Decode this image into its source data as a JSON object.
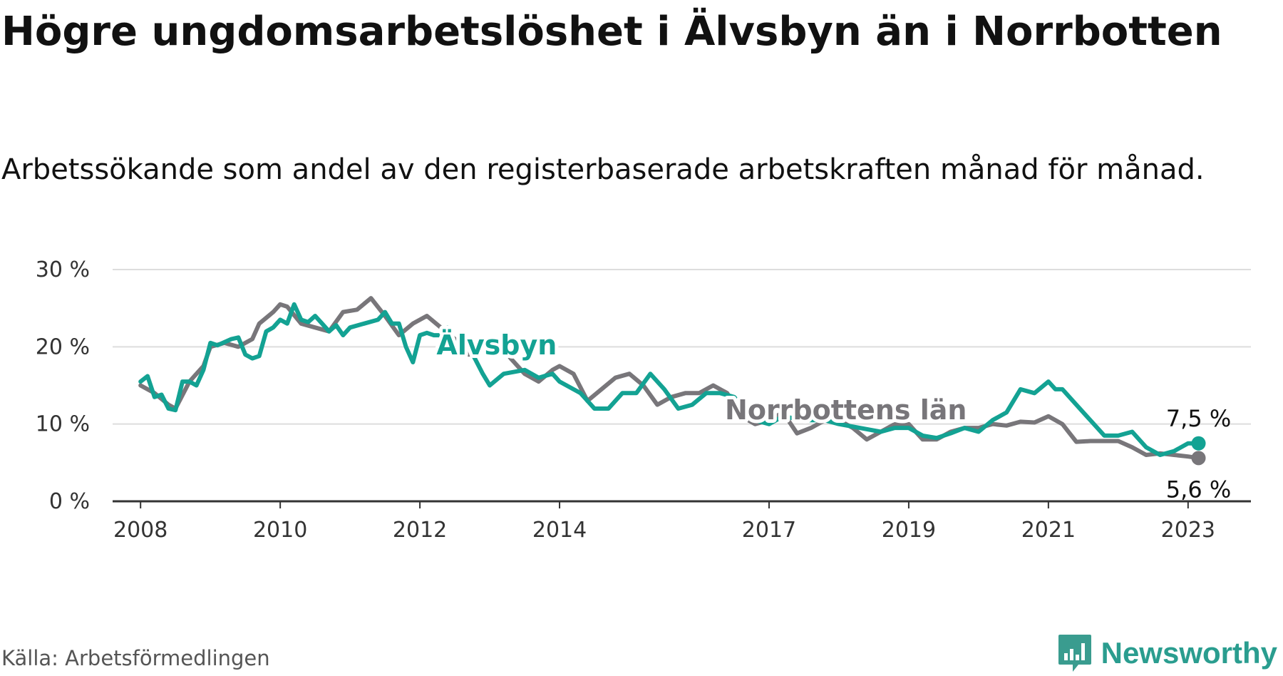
{
  "title": "Högre ungdomsarbetslöshet i Älvsbyn än i Norrbotten",
  "subtitle": "Arbetssökande som andel av den registerbaserade arbetskraften månad för månad.",
  "source": "Källa: Arbetsförmedlingen",
  "brand": {
    "name": "Newsworthy",
    "icon": "newsworthy-logo-icon",
    "color": "#3a9c8f"
  },
  "colors": {
    "alvsbyn": "#13a293",
    "norrbotten": "#78767a",
    "grid": "#dddddd",
    "axis": "#333333"
  },
  "chart_data": {
    "type": "line",
    "title": "Högre ungdomsarbetslöshet i Älvsbyn än i Norrbotten",
    "ylabel": "",
    "xlabel": "",
    "ylim": [
      0,
      30
    ],
    "xlim": [
      2007.6,
      2023.9
    ],
    "y_ticks": [
      0,
      10,
      20,
      30
    ],
    "y_tick_labels": [
      "0 %",
      "10 %",
      "20 %",
      "30 %"
    ],
    "x_ticks": [
      2008,
      2010,
      2012,
      2014,
      2017,
      2019,
      2021,
      2023
    ],
    "x_tick_labels": [
      "2008",
      "2010",
      "2012",
      "2014",
      "2017",
      "2019",
      "2021",
      "2023"
    ],
    "grid": true,
    "series": [
      {
        "name": "Norrbottens län",
        "label": "Norrbottens län",
        "color": "#78767a",
        "end_label": "5,6 %",
        "points": [
          [
            2008.0,
            15.0
          ],
          [
            2008.2,
            14.0
          ],
          [
            2008.4,
            12.5
          ],
          [
            2008.5,
            12.0
          ],
          [
            2008.7,
            15.5
          ],
          [
            2008.9,
            17.5
          ],
          [
            2009.0,
            20.0
          ],
          [
            2009.2,
            20.5
          ],
          [
            2009.4,
            20.0
          ],
          [
            2009.6,
            21.0
          ],
          [
            2009.7,
            23.0
          ],
          [
            2009.9,
            24.5
          ],
          [
            2010.0,
            25.5
          ],
          [
            2010.1,
            25.2
          ],
          [
            2010.3,
            23.0
          ],
          [
            2010.5,
            22.5
          ],
          [
            2010.7,
            22.0
          ],
          [
            2010.9,
            24.5
          ],
          [
            2011.1,
            24.8
          ],
          [
            2011.3,
            26.3
          ],
          [
            2011.5,
            24.0
          ],
          [
            2011.7,
            21.5
          ],
          [
            2011.9,
            23.0
          ],
          [
            2012.1,
            24.0
          ],
          [
            2012.3,
            22.5
          ],
          [
            2012.5,
            21.0
          ],
          [
            2012.7,
            19.0
          ],
          [
            2012.9,
            20.0
          ],
          [
            2013.1,
            21.0
          ],
          [
            2013.3,
            18.5
          ],
          [
            2013.5,
            16.5
          ],
          [
            2013.7,
            15.5
          ],
          [
            2013.9,
            17.0
          ],
          [
            2014.0,
            17.5
          ],
          [
            2014.2,
            16.5
          ],
          [
            2014.4,
            13.0
          ],
          [
            2014.6,
            14.5
          ],
          [
            2014.8,
            16.0
          ],
          [
            2015.0,
            16.5
          ],
          [
            2015.2,
            15.0
          ],
          [
            2015.4,
            12.5
          ],
          [
            2015.6,
            13.5
          ],
          [
            2015.8,
            14.0
          ],
          [
            2016.0,
            14.0
          ],
          [
            2016.2,
            15.0
          ],
          [
            2016.4,
            14.0
          ],
          [
            2016.6,
            11.0
          ],
          [
            2016.8,
            10.0
          ],
          [
            2017.0,
            10.5
          ],
          [
            2017.2,
            11.5
          ],
          [
            2017.4,
            8.8
          ],
          [
            2017.6,
            9.5
          ],
          [
            2017.8,
            10.5
          ],
          [
            2018.0,
            10.5
          ],
          [
            2018.2,
            9.5
          ],
          [
            2018.4,
            8.0
          ],
          [
            2018.6,
            9.0
          ],
          [
            2018.8,
            10.0
          ],
          [
            2019.0,
            10.0
          ],
          [
            2019.2,
            8.0
          ],
          [
            2019.4,
            8.0
          ],
          [
            2019.6,
            9.0
          ],
          [
            2019.8,
            9.5
          ],
          [
            2020.0,
            9.5
          ],
          [
            2020.2,
            10.0
          ],
          [
            2020.4,
            9.8
          ],
          [
            2020.6,
            10.3
          ],
          [
            2020.8,
            10.2
          ],
          [
            2021.0,
            11.0
          ],
          [
            2021.2,
            10.0
          ],
          [
            2021.4,
            7.7
          ],
          [
            2021.6,
            7.8
          ],
          [
            2021.8,
            7.8
          ],
          [
            2022.0,
            7.8
          ],
          [
            2022.2,
            7.0
          ],
          [
            2022.4,
            6.0
          ],
          [
            2022.6,
            6.2
          ],
          [
            2022.8,
            6.0
          ],
          [
            2023.0,
            5.8
          ],
          [
            2023.15,
            5.6
          ]
        ]
      },
      {
        "name": "Älvsbyn",
        "label": "Älvsbyn",
        "color": "#13a293",
        "end_label": "7,5 %",
        "points": [
          [
            2008.0,
            15.5
          ],
          [
            2008.1,
            16.2
          ],
          [
            2008.2,
            13.5
          ],
          [
            2008.3,
            13.8
          ],
          [
            2008.4,
            12.0
          ],
          [
            2008.5,
            11.8
          ],
          [
            2008.6,
            15.5
          ],
          [
            2008.7,
            15.5
          ],
          [
            2008.8,
            15.0
          ],
          [
            2008.9,
            17.0
          ],
          [
            2009.0,
            20.5
          ],
          [
            2009.1,
            20.2
          ],
          [
            2009.3,
            21.0
          ],
          [
            2009.4,
            21.2
          ],
          [
            2009.5,
            19.0
          ],
          [
            2009.6,
            18.5
          ],
          [
            2009.7,
            18.8
          ],
          [
            2009.8,
            22.0
          ],
          [
            2009.9,
            22.5
          ],
          [
            2010.0,
            23.5
          ],
          [
            2010.1,
            23.0
          ],
          [
            2010.2,
            25.5
          ],
          [
            2010.3,
            23.5
          ],
          [
            2010.4,
            23.2
          ],
          [
            2010.5,
            24.0
          ],
          [
            2010.6,
            23.0
          ],
          [
            2010.7,
            22.0
          ],
          [
            2010.8,
            22.8
          ],
          [
            2010.9,
            21.5
          ],
          [
            2011.0,
            22.5
          ],
          [
            2011.2,
            23.0
          ],
          [
            2011.4,
            23.5
          ],
          [
            2011.5,
            24.5
          ],
          [
            2011.6,
            23.0
          ],
          [
            2011.7,
            23.0
          ],
          [
            2011.8,
            20.0
          ],
          [
            2011.9,
            18.0
          ],
          [
            2012.0,
            21.5
          ],
          [
            2012.1,
            21.8
          ],
          [
            2012.2,
            21.5
          ],
          [
            2012.3,
            21.5
          ],
          [
            2012.4,
            22.5
          ],
          [
            2012.5,
            20.5
          ],
          [
            2012.6,
            19.0
          ],
          [
            2012.7,
            20.0
          ],
          [
            2012.9,
            16.5
          ],
          [
            2013.0,
            15.0
          ],
          [
            2013.2,
            16.5
          ],
          [
            2013.5,
            17.0
          ],
          [
            2013.7,
            16.0
          ],
          [
            2013.9,
            16.5
          ],
          [
            2014.0,
            15.5
          ],
          [
            2014.1,
            15.0
          ],
          [
            2014.3,
            14.0
          ],
          [
            2014.5,
            12.0
          ],
          [
            2014.7,
            12.0
          ],
          [
            2014.9,
            14.0
          ],
          [
            2015.1,
            14.0
          ],
          [
            2015.3,
            16.5
          ],
          [
            2015.5,
            14.5
          ],
          [
            2015.7,
            12.0
          ],
          [
            2015.9,
            12.5
          ],
          [
            2016.1,
            14.0
          ],
          [
            2016.3,
            14.0
          ],
          [
            2016.5,
            13.5
          ],
          [
            2016.8,
            10.5
          ],
          [
            2017.0,
            10.0
          ],
          [
            2017.2,
            11.0
          ],
          [
            2017.5,
            10.5
          ],
          [
            2017.8,
            10.5
          ],
          [
            2018.0,
            10.0
          ],
          [
            2018.3,
            9.5
          ],
          [
            2018.6,
            9.0
          ],
          [
            2018.8,
            9.5
          ],
          [
            2019.0,
            9.5
          ],
          [
            2019.2,
            8.5
          ],
          [
            2019.4,
            8.2
          ],
          [
            2019.6,
            8.8
          ],
          [
            2019.8,
            9.5
          ],
          [
            2020.0,
            9.0
          ],
          [
            2020.2,
            10.5
          ],
          [
            2020.4,
            11.5
          ],
          [
            2020.6,
            14.5
          ],
          [
            2020.8,
            14.0
          ],
          [
            2021.0,
            15.5
          ],
          [
            2021.1,
            14.5
          ],
          [
            2021.2,
            14.5
          ],
          [
            2021.4,
            12.5
          ],
          [
            2021.6,
            10.5
          ],
          [
            2021.8,
            8.5
          ],
          [
            2022.0,
            8.5
          ],
          [
            2022.2,
            9.0
          ],
          [
            2022.4,
            7.0
          ],
          [
            2022.6,
            6.0
          ],
          [
            2022.8,
            6.5
          ],
          [
            2023.0,
            7.5
          ],
          [
            2023.15,
            7.5
          ]
        ]
      }
    ]
  }
}
